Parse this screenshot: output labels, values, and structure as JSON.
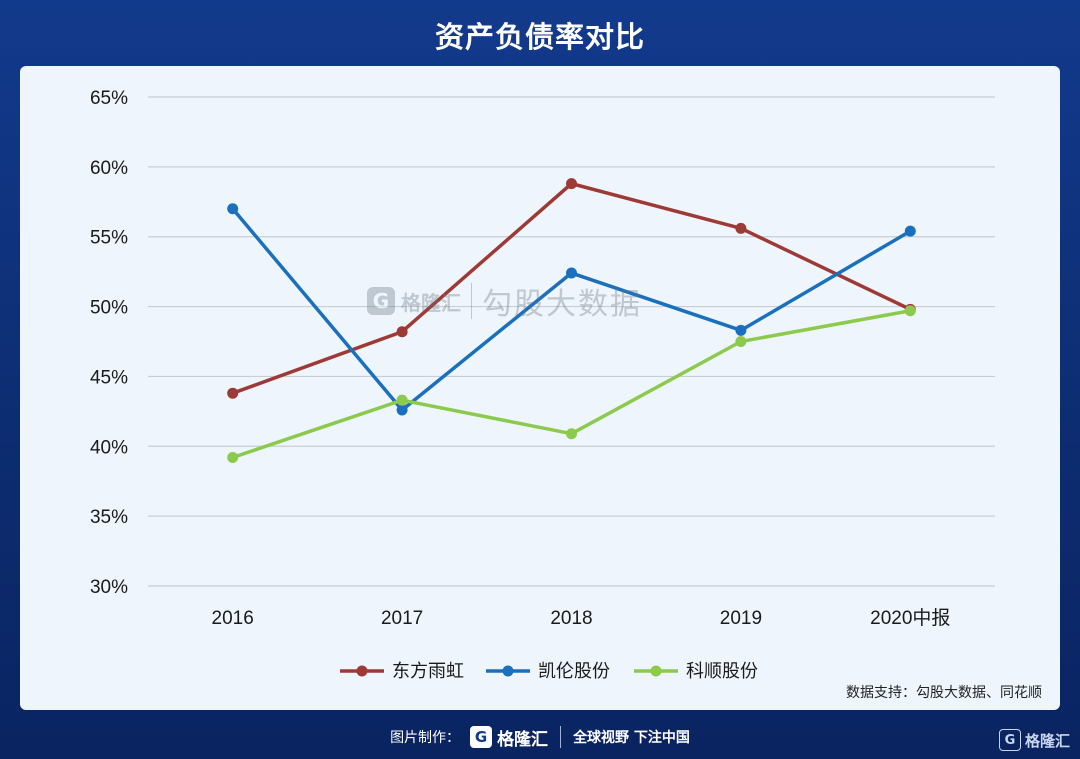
{
  "title": "资产负债率对比",
  "source": "数据支持：勾股大数据、同花顺",
  "watermark": {
    "logo": "G",
    "brand": "格隆汇",
    "text": "勾股大数据"
  },
  "footer": {
    "label": "图片制作：",
    "logo": "G",
    "brand": "格隆汇",
    "slogan": "全球视野 下注中国"
  },
  "corner_brand": {
    "logo": "G",
    "text": "格隆汇"
  },
  "chart_data": {
    "type": "line",
    "title": "资产负债率对比",
    "categories": [
      "2016",
      "2017",
      "2018",
      "2019",
      "2020中报"
    ],
    "ylim": [
      30,
      65
    ],
    "yticks": [
      "30%",
      "35%",
      "40%",
      "45%",
      "50%",
      "55%",
      "60%",
      "65%"
    ],
    "grid": true,
    "legend_position": "bottom",
    "series": [
      {
        "name": "东方雨虹",
        "color": "#9e3a35",
        "values": [
          43.8,
          48.2,
          58.8,
          55.6,
          49.8
        ]
      },
      {
        "name": "凯伦股份",
        "color": "#1b70bd",
        "values": [
          57.0,
          42.6,
          52.4,
          48.3,
          55.4
        ]
      },
      {
        "name": "科顺股份",
        "color": "#8cca4e",
        "values": [
          39.2,
          43.3,
          40.9,
          47.5,
          49.7
        ]
      }
    ]
  }
}
